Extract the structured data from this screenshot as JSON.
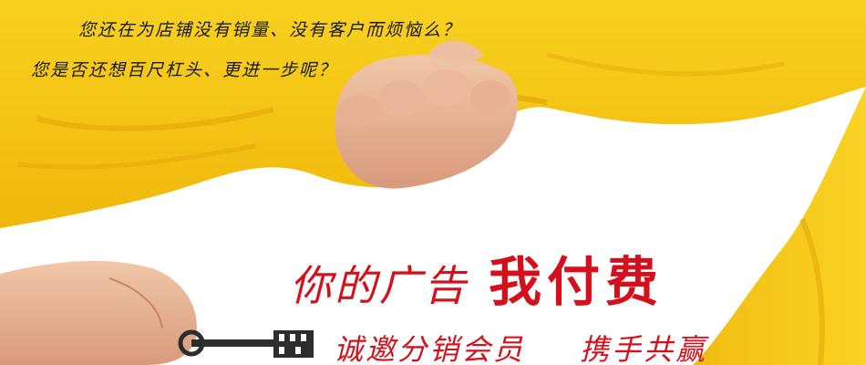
{
  "questions": {
    "line1": "您还在为店铺没有销量、没有客户而烦恼么？",
    "line2": "您是否还想百尺杠头、更进一步呢？"
  },
  "headline": {
    "normal": "你的广告",
    "strong": "我付费"
  },
  "tagline": {
    "left": "诚邀分销会员",
    "right": "携手共赢"
  },
  "colors": {
    "cloth": "#f5c418",
    "accent_red": "#d4101c",
    "background": "#ffffff"
  }
}
